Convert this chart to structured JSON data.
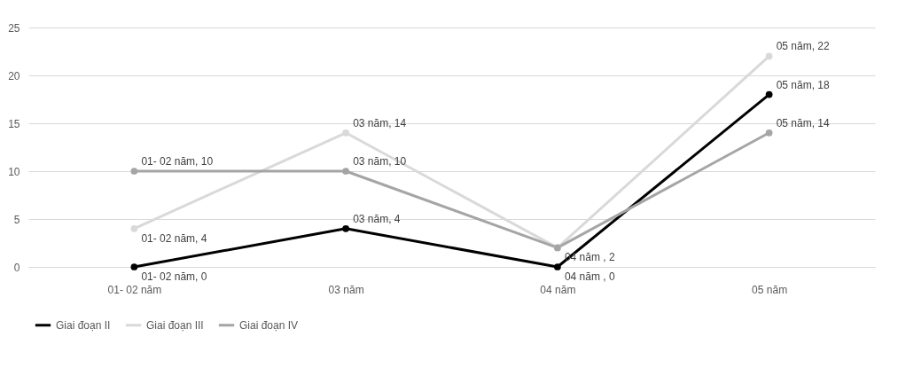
{
  "chart_data": {
    "type": "line",
    "categories": [
      "01- 02 năm",
      "03 năm",
      "04 năm",
      "05 năm"
    ],
    "series": [
      {
        "name": "Giai đoạn II",
        "color": "#000000",
        "values": [
          0,
          4,
          0,
          18
        ],
        "value_labels": [
          "01- 02 năm, 0",
          "03 năm, 4",
          "04 năm , 0",
          "05 năm, 18"
        ]
      },
      {
        "name": "Giai đoạn III",
        "color": "#d9d9d9",
        "values": [
          4,
          14,
          2,
          22
        ],
        "value_labels": [
          "01- 02 năm, 4",
          "03 năm, 14",
          null,
          "05 năm, 22"
        ]
      },
      {
        "name": "Giai đoạn IV",
        "color": "#a5a5a5",
        "values": [
          10,
          10,
          2,
          14
        ],
        "value_labels": [
          "01- 02 năm, 10",
          "03 năm, 10",
          "04 năm , 2",
          "05 năm, 14"
        ]
      }
    ],
    "ylim": [
      0,
      25
    ],
    "yticks": [
      0,
      5,
      10,
      15,
      20,
      25
    ],
    "grid": "y",
    "legend": "bottom",
    "marker": "circle",
    "line_style": "solid"
  }
}
